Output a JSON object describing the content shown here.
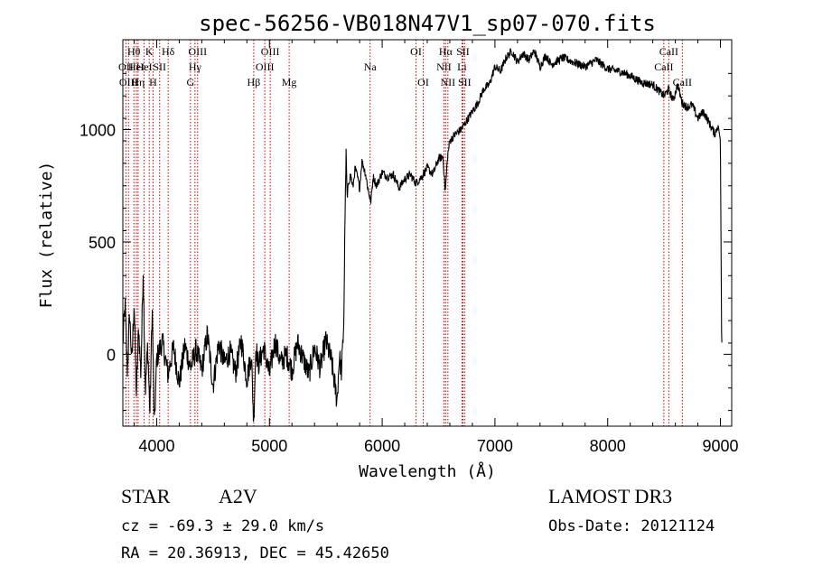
{
  "chart_data": {
    "type": "line",
    "title": "spec-56256-VB018N47V1_sp07-070.fits",
    "xlabel": "Wavelength (Å)",
    "ylabel": "Flux (relative)",
    "xlim": [
      3700,
      9100
    ],
    "ylim": [
      -320,
      1400
    ],
    "x_ticks": [
      4000,
      5000,
      6000,
      7000,
      8000,
      9000
    ],
    "y_ticks": [
      0,
      500,
      1000
    ],
    "series": [
      {
        "name": "flux",
        "x": [
          3700,
          3720,
          3740,
          3760,
          3780,
          3800,
          3820,
          3840,
          3860,
          3880,
          3900,
          3920,
          3940,
          3960,
          3980,
          4000,
          4050,
          4100,
          4150,
          4200,
          4250,
          4300,
          4350,
          4400,
          4450,
          4500,
          4550,
          4600,
          4650,
          4700,
          4750,
          4800,
          4840,
          4860,
          4880,
          4900,
          4950,
          5000,
          5050,
          5100,
          5150,
          5200,
          5250,
          5300,
          5350,
          5400,
          5450,
          5500,
          5550,
          5600,
          5620,
          5640,
          5660,
          5670,
          5680,
          5690,
          5700,
          5720,
          5740,
          5760,
          5780,
          5800,
          5820,
          5850,
          5880,
          5900,
          5920,
          5950,
          6000,
          6050,
          6100,
          6150,
          6200,
          6250,
          6300,
          6350,
          6400,
          6450,
          6500,
          6540,
          6560,
          6580,
          6600,
          6650,
          6700,
          6750,
          6800,
          6850,
          6900,
          6950,
          7000,
          7050,
          7100,
          7150,
          7200,
          7250,
          7300,
          7350,
          7400,
          7450,
          7500,
          7600,
          7700,
          7800,
          7900,
          8000,
          8100,
          8200,
          8300,
          8400,
          8500,
          8540,
          8580,
          8620,
          8660,
          8700,
          8750,
          8800,
          8850,
          8900,
          8950,
          8980,
          9000,
          9010,
          9015
        ],
        "values": [
          50,
          220,
          -80,
          180,
          -40,
          240,
          -180,
          120,
          -90,
          380,
          -160,
          40,
          -260,
          210,
          -330,
          -20,
          60,
          -90,
          30,
          -130,
          40,
          -60,
          20,
          -70,
          90,
          -140,
          50,
          -40,
          10,
          -80,
          60,
          -110,
          0,
          -300,
          40,
          -50,
          30,
          -90,
          60,
          -40,
          0,
          -70,
          50,
          -20,
          -90,
          30,
          -60,
          60,
          -30,
          -210,
          -10,
          -80,
          150,
          600,
          900,
          680,
          760,
          800,
          740,
          830,
          790,
          740,
          860,
          810,
          720,
          680,
          790,
          750,
          810,
          790,
          800,
          740,
          780,
          800,
          760,
          790,
          830,
          800,
          870,
          880,
          720,
          880,
          950,
          980,
          1000,
          1040,
          1080,
          1120,
          1180,
          1200,
          1280,
          1260,
          1320,
          1350,
          1300,
          1340,
          1310,
          1350,
          1280,
          1330,
          1290,
          1320,
          1300,
          1280,
          1310,
          1270,
          1260,
          1240,
          1210,
          1200,
          1150,
          1180,
          1130,
          1200,
          1120,
          1100,
          1110,
          1050,
          1080,
          1030,
          980,
          1020,
          950,
          100,
          20
        ]
      }
    ],
    "lines": [
      {
        "wl": 3727,
        "label": "OII",
        "row": 2
      },
      {
        "wl": 3750,
        "label": "OIII",
        "row": 3
      },
      {
        "wl": 3798,
        "label": "Hθ",
        "row": 1
      },
      {
        "wl": 3820,
        "label": "HeI",
        "row": 2
      },
      {
        "wl": 3835,
        "label": "Hη",
        "row": 3
      },
      {
        "wl": 3889,
        "label": "HeI",
        "row": 2
      },
      {
        "wl": 3934,
        "label": "K",
        "row": 1
      },
      {
        "wl": 3968,
        "label": "H",
        "row": 3
      },
      {
        "wl": 4026,
        "label": "SII",
        "row": 2
      },
      {
        "wl": 4102,
        "label": "Hδ",
        "row": 1
      },
      {
        "wl": 4300,
        "label": "G",
        "row": 3
      },
      {
        "wl": 4340,
        "label": "Hγ",
        "row": 2
      },
      {
        "wl": 4363,
        "label": "OIII",
        "row": 1
      },
      {
        "wl": 4861,
        "label": "Hβ",
        "row": 3
      },
      {
        "wl": 4959,
        "label": "OIII",
        "row": 2
      },
      {
        "wl": 5007,
        "label": "OIII",
        "row": 1
      },
      {
        "wl": 5175,
        "label": "Mg",
        "row": 3
      },
      {
        "wl": 5893,
        "label": "Na",
        "row": 2
      },
      {
        "wl": 6300,
        "label": "OI",
        "row": 1
      },
      {
        "wl": 6364,
        "label": "OI",
        "row": 3
      },
      {
        "wl": 6548,
        "label": "NII",
        "row": 2
      },
      {
        "wl": 6563,
        "label": "Hα",
        "row": 1
      },
      {
        "wl": 6583,
        "label": "NII",
        "row": 3
      },
      {
        "wl": 6708,
        "label": "Li",
        "row": 2
      },
      {
        "wl": 6716,
        "label": "SII",
        "row": 1
      },
      {
        "wl": 6731,
        "label": "SII",
        "row": 3
      },
      {
        "wl": 8498,
        "label": "CaII",
        "row": 2
      },
      {
        "wl": 8542,
        "label": "CaII",
        "row": 1
      },
      {
        "wl": 8662,
        "label": "CaII",
        "row": 3
      }
    ]
  },
  "info": {
    "obj_class": "STAR",
    "spec_type": "A2V",
    "survey": "LAMOST DR3",
    "cz": "cz = -69.3 ± 29.0 km/s",
    "obs_date": "Obs-Date: 20121124",
    "radec": "RA =  20.36913, DEC =  45.42650"
  }
}
